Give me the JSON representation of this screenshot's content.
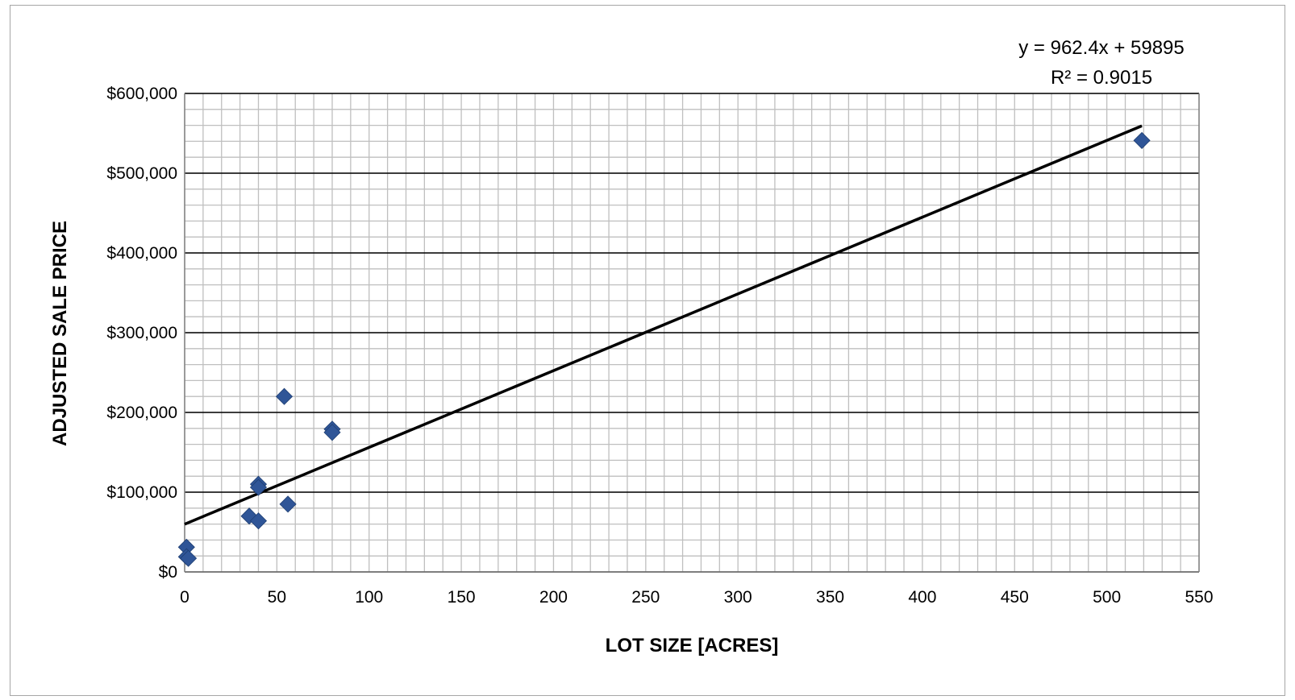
{
  "chart_data": {
    "type": "scatter",
    "xlabel": "LOT SIZE [ACRES]",
    "ylabel": "ADJUSTED SALE PRICE",
    "xlim": [
      0,
      550
    ],
    "ylim": [
      0,
      600000
    ],
    "x_ticks": [
      0,
      50,
      100,
      150,
      200,
      250,
      300,
      350,
      400,
      450,
      500,
      550
    ],
    "x_tick_labels": [
      "0",
      "50",
      "100",
      "150",
      "200",
      "250",
      "300",
      "350",
      "400",
      "450",
      "500",
      "550"
    ],
    "y_ticks": [
      0,
      100000,
      200000,
      300000,
      400000,
      500000,
      600000
    ],
    "y_tick_labels": [
      "$0",
      "$100,000",
      "$200,000",
      "$300,000",
      "$400,000",
      "$500,000",
      "$600,000"
    ],
    "grid": {
      "major": true,
      "minor": true,
      "x_minor_step": 10,
      "y_minor_step": 20000
    },
    "legend": "none",
    "series": [
      {
        "marker": "diamond",
        "color": "#2f5597",
        "points": [
          {
            "x": 1,
            "y": 31000
          },
          {
            "x": 1,
            "y": 19000
          },
          {
            "x": 2,
            "y": 17000
          },
          {
            "x": 35,
            "y": 70000
          },
          {
            "x": 40,
            "y": 64000
          },
          {
            "x": 40,
            "y": 110000
          },
          {
            "x": 40,
            "y": 106000
          },
          {
            "x": 54,
            "y": 220000
          },
          {
            "x": 56,
            "y": 85000
          },
          {
            "x": 80,
            "y": 179000
          },
          {
            "x": 80,
            "y": 175000
          },
          {
            "x": 519,
            "y": 541000
          }
        ]
      }
    ],
    "trendline": {
      "type": "linear",
      "slope": 962.4,
      "intercept": 59895,
      "x_range": [
        0,
        519
      ],
      "color": "#000000",
      "equation_label": "y = 962.4x + 59895",
      "r2_label": "R² = 0.9015"
    }
  },
  "colors": {
    "background": "#ffffff",
    "frame_border": "#a6a6a6",
    "major_grid": "#000000",
    "minor_grid": "#bfbfbf",
    "marker": "#2f5597",
    "trendline": "#000000"
  }
}
